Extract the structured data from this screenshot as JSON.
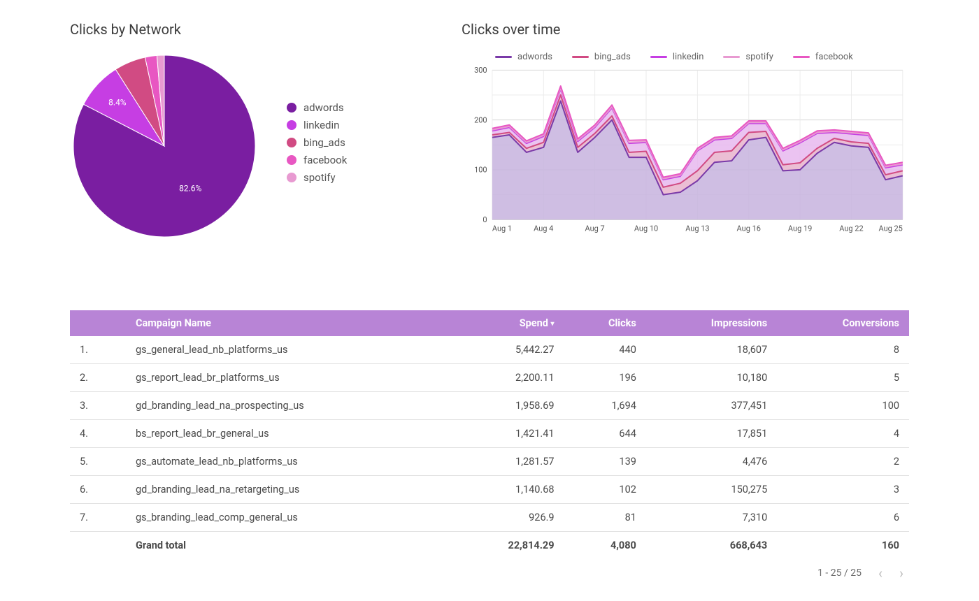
{
  "pie": {
    "title": "Clicks by Network",
    "background_color": "#ffffff",
    "slices": [
      {
        "label": "adwords",
        "pct": 82.6,
        "color": "#7a1ea1",
        "show_pct": "82.6%",
        "show_pct_at": 0.55
      },
      {
        "label": "linkedin",
        "pct": 8.4,
        "color": "#c63ee3",
        "show_pct": "8.4%",
        "show_pct_at": 0.7
      },
      {
        "label": "bing_ads",
        "pct": 5.6,
        "color": "#d14b83",
        "show_pct": "",
        "show_pct_at": 0
      },
      {
        "label": "facebook",
        "pct": 2.1,
        "color": "#e857c2",
        "show_pct": "",
        "show_pct_at": 0
      },
      {
        "label": "spotify",
        "pct": 1.3,
        "color": "#e89ad1",
        "show_pct": "",
        "show_pct_at": 0
      }
    ],
    "inner_stroke_color": "#ffffff",
    "inner_stroke_width": 1,
    "label_fontsize": 12
  },
  "line": {
    "title": "Clicks over time",
    "type": "stacked_area_line",
    "legend_order": [
      "adwords",
      "bing_ads",
      "linkedin",
      "spotify",
      "facebook"
    ],
    "colors": {
      "adwords": {
        "stroke": "#7a3aa8",
        "fill": "#c7b3de"
      },
      "bing_ads": {
        "stroke": "#d14b83",
        "fill": "#e7b3cc"
      },
      "linkedin": {
        "stroke": "#c63ee3",
        "fill": "#e7b9ee"
      },
      "spotify": {
        "stroke": "#e89ad1",
        "fill": "#f1c9e3"
      },
      "facebook": {
        "stroke": "#e857c2",
        "fill": "#f2b5de"
      }
    },
    "x_labels": [
      "Aug 1",
      "Aug 4",
      "Aug 7",
      "Aug 10",
      "Aug 13",
      "Aug 16",
      "Aug 19",
      "Aug 22",
      "Aug 25"
    ],
    "x_dates": [
      1,
      4,
      7,
      10,
      13,
      16,
      19,
      22,
      25
    ],
    "xlim": [
      1,
      25
    ],
    "ylim": [
      0,
      300
    ],
    "ytick_step": 100,
    "grid_color": "#d4d4d4",
    "grid_sub_color": "#eaeaea",
    "axis_fontsize": 12,
    "series": {
      "adwords": [
        165,
        170,
        135,
        145,
        238,
        135,
        165,
        200,
        125,
        125,
        50,
        55,
        78,
        115,
        118,
        160,
        165,
        98,
        100,
        133,
        155,
        148,
        145,
        80,
        88
      ],
      "bing_ads": [
        5,
        5,
        8,
        10,
        12,
        10,
        8,
        8,
        10,
        12,
        15,
        18,
        20,
        20,
        20,
        15,
        12,
        12,
        14,
        10,
        8,
        8,
        8,
        10,
        10
      ],
      "linkedin": [
        8,
        10,
        10,
        12,
        12,
        12,
        12,
        16,
        18,
        18,
        15,
        14,
        40,
        25,
        25,
        18,
        16,
        28,
        40,
        30,
        12,
        16,
        16,
        14,
        12
      ],
      "spotify": [
        2,
        2,
        2,
        2,
        2,
        2,
        2,
        2,
        2,
        2,
        2,
        2,
        2,
        2,
        2,
        2,
        2,
        2,
        2,
        2,
        2,
        2,
        2,
        2,
        2
      ],
      "facebook": [
        3,
        3,
        3,
        3,
        4,
        3,
        3,
        4,
        4,
        3,
        3,
        3,
        3,
        3,
        3,
        3,
        3,
        3,
        3,
        3,
        3,
        3,
        3,
        3,
        3
      ]
    }
  },
  "table": {
    "header_bg": "#b884d6",
    "header_fg": "#ffffff",
    "row_border": "#e2e2e2",
    "sorted_by": "Spend",
    "columns": [
      {
        "key": "idx",
        "label": "",
        "align": "left"
      },
      {
        "key": "name",
        "label": "Campaign Name",
        "align": "left"
      },
      {
        "key": "spend",
        "label": "Spend",
        "align": "right",
        "sort_indicator": "▾"
      },
      {
        "key": "clicks",
        "label": "Clicks",
        "align": "right"
      },
      {
        "key": "impressions",
        "label": "Impressions",
        "align": "right"
      },
      {
        "key": "conversions",
        "label": "Conversions",
        "align": "right"
      }
    ],
    "rows": [
      {
        "idx": "1.",
        "name": "gs_general_lead_nb_platforms_us",
        "spend": "5,442.27",
        "clicks": "440",
        "impressions": "18,607",
        "conversions": "8"
      },
      {
        "idx": "2.",
        "name": "gs_report_lead_br_platforms_us",
        "spend": "2,200.11",
        "clicks": "196",
        "impressions": "10,180",
        "conversions": "5"
      },
      {
        "idx": "3.",
        "name": "gd_branding_lead_na_prospecting_us",
        "spend": "1,958.69",
        "clicks": "1,694",
        "impressions": "377,451",
        "conversions": "100"
      },
      {
        "idx": "4.",
        "name": "bs_report_lead_br_general_us",
        "spend": "1,421.41",
        "clicks": "644",
        "impressions": "17,851",
        "conversions": "4"
      },
      {
        "idx": "5.",
        "name": "gs_automate_lead_nb_platforms_us",
        "spend": "1,281.57",
        "clicks": "139",
        "impressions": "4,476",
        "conversions": "2"
      },
      {
        "idx": "6.",
        "name": "gd_branding_lead_na_retargeting_us",
        "spend": "1,140.68",
        "clicks": "102",
        "impressions": "150,275",
        "conversions": "3"
      },
      {
        "idx": "7.",
        "name": "gs_branding_lead_comp_general_us",
        "spend": "926.9",
        "clicks": "81",
        "impressions": "7,310",
        "conversions": "6"
      }
    ],
    "total": {
      "idx": "",
      "name": "Grand total",
      "spend": "22,814.29",
      "clicks": "4,080",
      "impressions": "668,643",
      "conversions": "160"
    }
  },
  "pager": {
    "text": "1 - 25 / 25",
    "prev": "‹",
    "next": "›"
  }
}
